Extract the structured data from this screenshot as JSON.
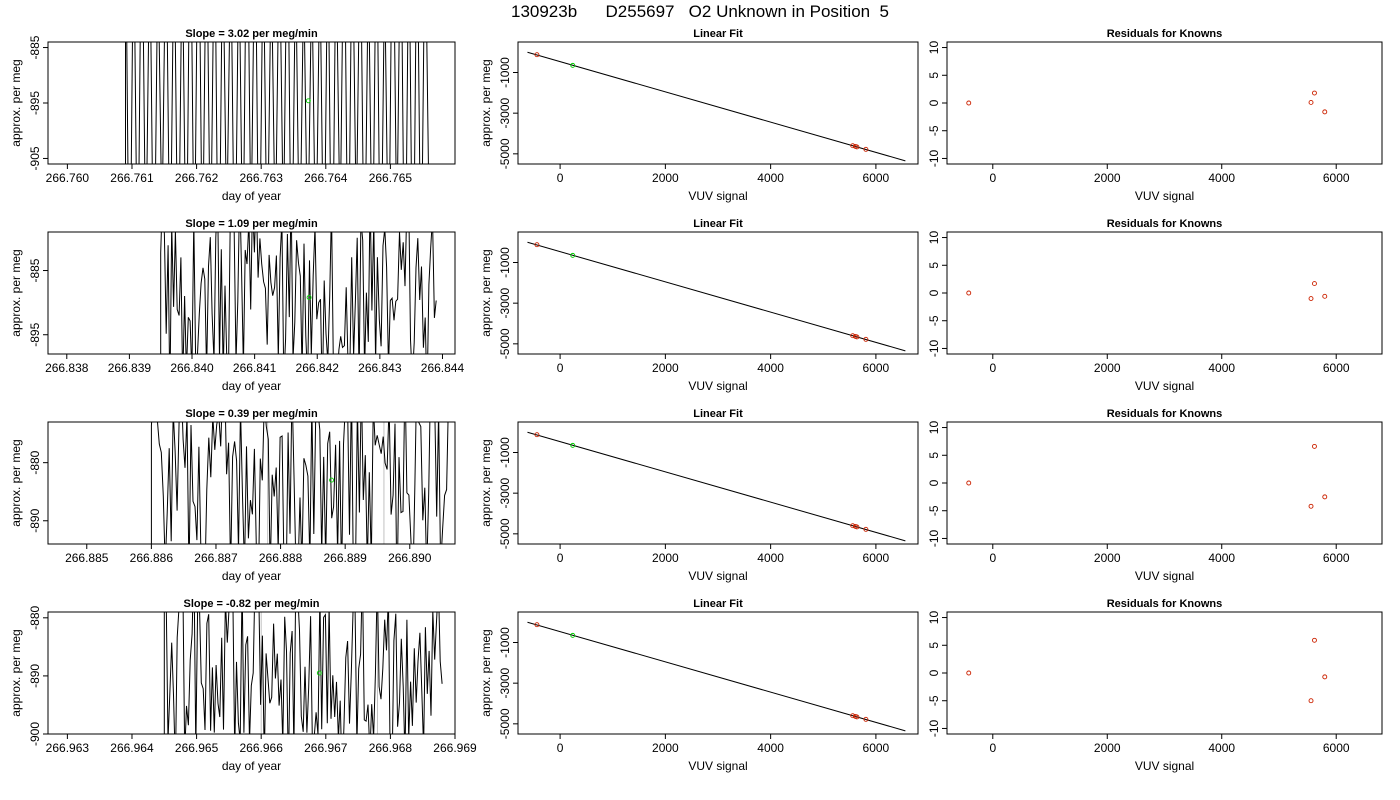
{
  "page_title": "130923b      D255697   O2 Unknown in Position  5",
  "chart_data": [
    {
      "type": "line",
      "title": "Slope =  3.02  per meg/min",
      "xlabel": "day of year",
      "ylabel": "approx. per meg",
      "xlim": [
        266.7597,
        266.766
      ],
      "ylim": [
        -906,
        -884
      ],
      "x_ticks": [
        266.76,
        266.761,
        266.762,
        266.763,
        266.764,
        266.765
      ],
      "x_tick_labels": [
        "266.760",
        "266.761",
        "266.762",
        "266.763",
        "266.764",
        "266.765"
      ],
      "y_ticks": [
        -885,
        -895,
        -905
      ],
      "y_tick_labels": [
        "-885",
        "-895",
        "-905"
      ],
      "series_range": [
        266.7609,
        266.7656
      ],
      "series_style": "spiky",
      "highlight_point": {
        "x": 266.76373,
        "y": -894.6,
        "color": "#00cc00"
      },
      "grey_markers": []
    },
    {
      "type": "scatter",
      "title": "Linear Fit",
      "xlabel": "VUV signal",
      "ylabel": "approx. per meg",
      "xlim": [
        -800,
        6800
      ],
      "ylim": [
        -5500,
        500
      ],
      "x_ticks": [
        0,
        2000,
        4000,
        6000
      ],
      "x_tick_labels": [
        "0",
        "2000",
        "4000",
        "6000"
      ],
      "y_ticks": [
        -1000,
        -3000,
        -5000
      ],
      "y_tick_labels": [
        "-1000",
        "-3000",
        "-5000"
      ],
      "fit_line": {
        "x": [
          -620,
          6560
        ],
        "y": [
          -5,
          -5345
        ]
      },
      "points": [
        {
          "x": -440,
          "y": -125
        },
        {
          "x": 5560,
          "y": -4600
        },
        {
          "x": 5610,
          "y": -4635
        },
        {
          "x": 5640,
          "y": -4660
        },
        {
          "x": 5810,
          "y": -4780
        }
      ],
      "highlight_point": {
        "x": 240,
        "y": -650,
        "color": "#00cc00"
      }
    },
    {
      "type": "scatter",
      "title": "Residuals for Knowns",
      "xlabel": "VUV signal",
      "ylabel": "",
      "xlim": [
        -800,
        6800
      ],
      "ylim": [
        -11,
        11
      ],
      "x_ticks": [
        0,
        2000,
        4000,
        6000
      ],
      "x_tick_labels": [
        "0",
        "2000",
        "4000",
        "6000"
      ],
      "y_ticks": [
        10,
        5,
        0,
        -5,
        -10
      ],
      "y_tick_labels": [
        "10",
        "5",
        "0",
        "-5",
        "-10"
      ],
      "points": [
        {
          "x": -420,
          "y": 0
        },
        {
          "x": 5560,
          "y": 0.1
        },
        {
          "x": 5620,
          "y": 1.8
        },
        {
          "x": 5800,
          "y": -1.6
        }
      ]
    },
    {
      "type": "line",
      "title": "Slope =  1.09  per meg/min",
      "xlabel": "day of year",
      "ylabel": "approx. per meg",
      "xlim": [
        266.8377,
        266.8442
      ],
      "ylim": [
        -898,
        -879
      ],
      "x_ticks": [
        266.838,
        266.839,
        266.84,
        266.841,
        266.842,
        266.843,
        266.844
      ],
      "x_tick_labels": [
        "266.838",
        "266.839",
        "266.840",
        "266.841",
        "266.842",
        "266.843",
        "266.844"
      ],
      "y_ticks": [
        -885,
        -895
      ],
      "y_tick_labels": [
        "-885",
        "-895"
      ],
      "series_range": [
        266.8395,
        266.8439
      ],
      "series_style": "noisy",
      "highlight_point": {
        "x": 266.84187,
        "y": -889.2,
        "color": "#00cc00"
      },
      "grey_markers": []
    },
    {
      "type": "scatter",
      "title": "Linear Fit",
      "xlabel": "VUV signal",
      "ylabel": "approx. per meg",
      "xlim": [
        -800,
        6800
      ],
      "ylim": [
        -5500,
        500
      ],
      "x_ticks": [
        0,
        2000,
        4000,
        6000
      ],
      "x_tick_labels": [
        "0",
        "2000",
        "4000",
        "6000"
      ],
      "y_ticks": [
        -1000,
        -3000,
        -5000
      ],
      "y_tick_labels": [
        "-1000",
        "-3000",
        "-5000"
      ],
      "fit_line": {
        "x": [
          -620,
          6560
        ],
        "y": [
          -5,
          -5345
        ]
      },
      "points": [
        {
          "x": -440,
          "y": -125
        },
        {
          "x": 5560,
          "y": -4600
        },
        {
          "x": 5610,
          "y": -4635
        },
        {
          "x": 5640,
          "y": -4660
        },
        {
          "x": 5810,
          "y": -4780
        }
      ],
      "highlight_point": {
        "x": 240,
        "y": -650,
        "color": "#00cc00"
      }
    },
    {
      "type": "scatter",
      "title": "Residuals for Knowns",
      "xlabel": "VUV signal",
      "ylabel": "",
      "xlim": [
        -800,
        6800
      ],
      "ylim": [
        -11,
        11
      ],
      "x_ticks": [
        0,
        2000,
        4000,
        6000
      ],
      "x_tick_labels": [
        "0",
        "2000",
        "4000",
        "6000"
      ],
      "y_ticks": [
        10,
        5,
        0,
        -5,
        -10
      ],
      "y_tick_labels": [
        "10",
        "5",
        "0",
        "-5",
        "-10"
      ],
      "points": [
        {
          "x": -420,
          "y": 0
        },
        {
          "x": 5560,
          "y": -1.0
        },
        {
          "x": 5620,
          "y": 1.7
        },
        {
          "x": 5800,
          "y": -0.6
        }
      ]
    },
    {
      "type": "line",
      "title": "Slope =  0.39  per meg/min",
      "xlabel": "day of year",
      "ylabel": "approx. per meg",
      "xlim": [
        266.8844,
        266.8907
      ],
      "ylim": [
        -894,
        -873
      ],
      "x_ticks": [
        266.885,
        266.886,
        266.887,
        266.888,
        266.889,
        266.89
      ],
      "x_tick_labels": [
        "266.885",
        "266.886",
        "266.887",
        "266.888",
        "266.889",
        "266.890"
      ],
      "y_ticks": [
        -880,
        -890
      ],
      "y_tick_labels": [
        "-880",
        "-890"
      ],
      "series_range": [
        266.886,
        266.8906
      ],
      "series_style": "noisy",
      "highlight_point": {
        "x": 266.88879,
        "y": -883.0,
        "color": "#00cc00"
      },
      "grey_markers": [
        266.8878,
        266.8896
      ]
    },
    {
      "type": "scatter",
      "title": "Linear Fit",
      "xlabel": "VUV signal",
      "ylabel": "approx. per meg",
      "xlim": [
        -800,
        6800
      ],
      "ylim": [
        -5500,
        500
      ],
      "x_ticks": [
        0,
        2000,
        4000,
        6000
      ],
      "x_tick_labels": [
        "0",
        "2000",
        "4000",
        "6000"
      ],
      "y_ticks": [
        -1000,
        -3000,
        -5000
      ],
      "y_tick_labels": [
        "-1000",
        "-3000",
        "-5000"
      ],
      "fit_line": {
        "x": [
          -620,
          6560
        ],
        "y": [
          -5,
          -5345
        ]
      },
      "points": [
        {
          "x": -440,
          "y": -125
        },
        {
          "x": 5560,
          "y": -4600
        },
        {
          "x": 5610,
          "y": -4635
        },
        {
          "x": 5640,
          "y": -4660
        },
        {
          "x": 5810,
          "y": -4780
        }
      ],
      "highlight_point": {
        "x": 240,
        "y": -650,
        "color": "#00cc00"
      }
    },
    {
      "type": "scatter",
      "title": "Residuals for Knowns",
      "xlabel": "VUV signal",
      "ylabel": "",
      "xlim": [
        -800,
        6800
      ],
      "ylim": [
        -11,
        11
      ],
      "x_ticks": [
        0,
        2000,
        4000,
        6000
      ],
      "x_tick_labels": [
        "0",
        "2000",
        "4000",
        "6000"
      ],
      "y_ticks": [
        10,
        5,
        0,
        -5,
        -10
      ],
      "y_tick_labels": [
        "10",
        "5",
        "0",
        "-5",
        "-10"
      ],
      "points": [
        {
          "x": -420,
          "y": 0
        },
        {
          "x": 5560,
          "y": -4.2
        },
        {
          "x": 5620,
          "y": 6.6
        },
        {
          "x": 5800,
          "y": -2.5
        }
      ]
    },
    {
      "type": "line",
      "title": "Slope =  -0.82  per meg/min",
      "xlabel": "day of year",
      "ylabel": "approx. per meg",
      "xlim": [
        266.9627,
        266.969
      ],
      "ylim": [
        -900,
        -879
      ],
      "x_ticks": [
        266.963,
        266.964,
        266.965,
        266.966,
        266.967,
        266.968,
        266.969
      ],
      "x_tick_labels": [
        "266.963",
        "266.964",
        "266.965",
        "266.966",
        "266.967",
        "266.968",
        "266.969"
      ],
      "y_ticks": [
        -880,
        -890,
        -900
      ],
      "y_tick_labels": [
        "-880",
        "-890",
        "-900"
      ],
      "series_range": [
        266.9645,
        266.9688
      ],
      "series_style": "noisy",
      "highlight_point": {
        "x": 266.9669,
        "y": -889.5,
        "color": "#00cc00"
      },
      "grey_markers": [
        266.966,
        266.9678
      ]
    },
    {
      "type": "scatter",
      "title": "Linear Fit",
      "xlabel": "VUV signal",
      "ylabel": "approx. per meg",
      "xlim": [
        -800,
        6800
      ],
      "ylim": [
        -5500,
        500
      ],
      "x_ticks": [
        0,
        2000,
        4000,
        6000
      ],
      "x_tick_labels": [
        "0",
        "2000",
        "4000",
        "6000"
      ],
      "y_ticks": [
        -1000,
        -3000,
        -5000
      ],
      "y_tick_labels": [
        "-1000",
        "-3000",
        "-5000"
      ],
      "fit_line": {
        "x": [
          -620,
          6560
        ],
        "y": [
          -5,
          -5345
        ]
      },
      "points": [
        {
          "x": -440,
          "y": -125
        },
        {
          "x": 5560,
          "y": -4600
        },
        {
          "x": 5610,
          "y": -4635
        },
        {
          "x": 5640,
          "y": -4660
        },
        {
          "x": 5810,
          "y": -4780
        }
      ],
      "highlight_point": {
        "x": 240,
        "y": -650,
        "color": "#00cc00"
      }
    },
    {
      "type": "scatter",
      "title": "Residuals for Knowns",
      "xlabel": "VUV signal",
      "ylabel": "",
      "xlim": [
        -800,
        6800
      ],
      "ylim": [
        -11,
        11
      ],
      "x_ticks": [
        0,
        2000,
        4000,
        6000
      ],
      "x_tick_labels": [
        "0",
        "2000",
        "4000",
        "6000"
      ],
      "y_ticks": [
        10,
        5,
        0,
        -5,
        -10
      ],
      "y_tick_labels": [
        "10",
        "5",
        "0",
        "-5",
        "-10"
      ],
      "points": [
        {
          "x": -420,
          "y": 0
        },
        {
          "x": 5560,
          "y": -5.0
        },
        {
          "x": 5620,
          "y": 5.9
        },
        {
          "x": 5800,
          "y": -0.7
        }
      ]
    }
  ],
  "colors": {
    "axis": "#000000",
    "series": "#000000",
    "unknown_point": "#00cc00",
    "known_point": "#cc2200",
    "grey_marker": "#c0c0c0"
  }
}
